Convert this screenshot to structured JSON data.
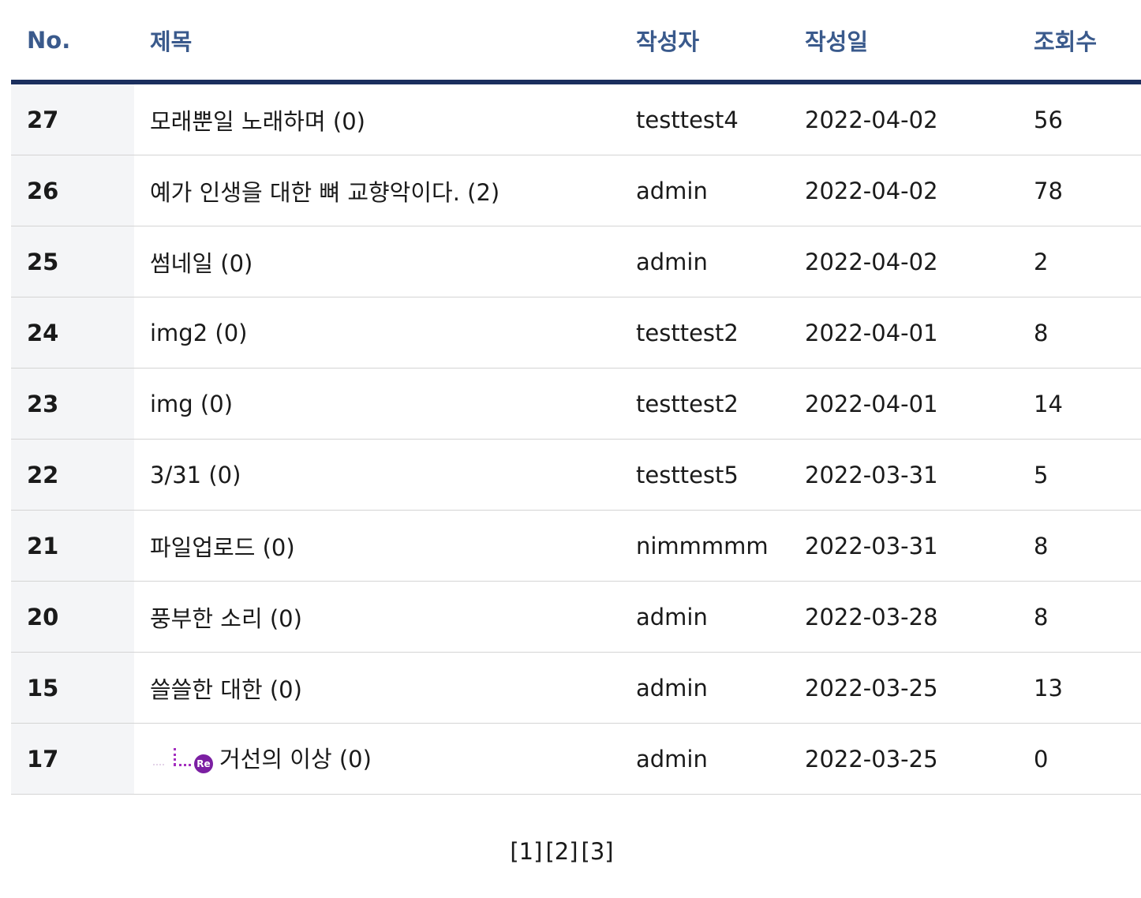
{
  "header": {
    "no": "No.",
    "title": "제목",
    "author": "작성자",
    "date": "작성일",
    "views": "조회수"
  },
  "rows": [
    {
      "no": "27",
      "title": "모래뿐일 노래하며 (0)",
      "author": "testtest4",
      "date": "2022-04-02",
      "views": "56",
      "reply": false
    },
    {
      "no": "26",
      "title": "예가 인생을 대한 뼈 교향악이다. (2)",
      "author": "admin",
      "date": "2022-04-02",
      "views": "78",
      "reply": false
    },
    {
      "no": "25",
      "title": "썸네일 (0)",
      "author": "admin",
      "date": "2022-04-02",
      "views": "2",
      "reply": false
    },
    {
      "no": "24",
      "title": "img2 (0)",
      "author": "testtest2",
      "date": "2022-04-01",
      "views": "8",
      "reply": false
    },
    {
      "no": "23",
      "title": "img (0)",
      "author": "testtest2",
      "date": "2022-04-01",
      "views": "14",
      "reply": false
    },
    {
      "no": "22",
      "title": "3/31 (0)",
      "author": "testtest5",
      "date": "2022-03-31",
      "views": "5",
      "reply": false
    },
    {
      "no": "21",
      "title": "파일업로드 (0)",
      "author": "nimmmmm",
      "date": "2022-03-31",
      "views": "8",
      "reply": false
    },
    {
      "no": "20",
      "title": "풍부한 소리 (0)",
      "author": "admin",
      "date": "2022-03-28",
      "views": "8",
      "reply": false
    },
    {
      "no": "15",
      "title": "쓸쓸한 대한 (0)",
      "author": "admin",
      "date": "2022-03-25",
      "views": "13",
      "reply": false
    },
    {
      "no": "17",
      "title": "거선의 이상 (0)",
      "author": "admin",
      "date": "2022-03-25",
      "views": "0",
      "reply": true,
      "reply_badge": "Re"
    }
  ],
  "pagination": {
    "pages": [
      "[1]",
      "[2]",
      "[3]"
    ]
  },
  "colors": {
    "header_text": "#3a5a8c",
    "header_border": "#1b2f5e",
    "no_column_bg": "#f4f5f7",
    "reply_accent": "#7b1fa2"
  }
}
